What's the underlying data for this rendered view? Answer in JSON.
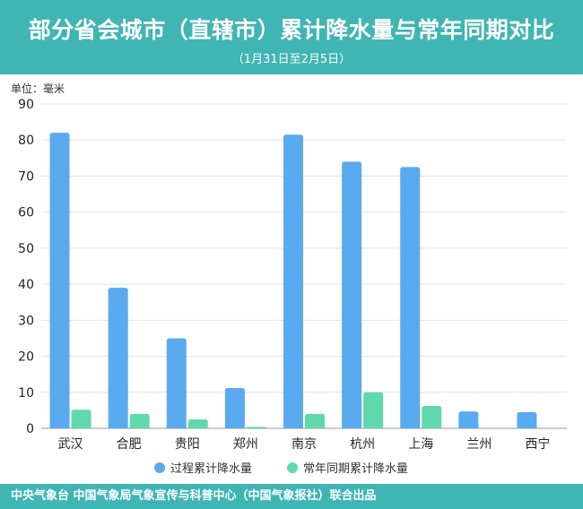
{
  "header": {
    "title": "部分省会城市（直辖市）累计降水量与常年同期对比",
    "subtitle": "（1月31日至2月5日）"
  },
  "footer": {
    "text": "中央气象台 中国气象局气象宣传与科普中心（中国气象报社）联合出品"
  },
  "colors": {
    "header_bg": "#3fb5b4",
    "series_actual": "#5aaaf0",
    "series_normal": "#5fd9ab"
  },
  "chart_data": {
    "type": "bar",
    "title": "部分省会城市（直辖市）累计降水量与常年同期对比",
    "subtitle": "（1月31日至2月5日）",
    "ylabel": "单位：毫米",
    "ylim": [
      0,
      90
    ],
    "yticks": [
      0,
      10,
      20,
      30,
      40,
      50,
      60,
      70,
      80,
      90
    ],
    "grid": true,
    "legend": "bottom-center",
    "categories": [
      "武汉",
      "合肥",
      "贵阳",
      "郑州",
      "南京",
      "杭州",
      "上海",
      "兰州",
      "西宁"
    ],
    "series": [
      {
        "name": "过程累计降水量",
        "color": "#5aaaf0",
        "values": [
          82,
          39,
          25,
          11.2,
          81.5,
          74,
          72.5,
          4.7,
          4.5
        ]
      },
      {
        "name": "常年同期累计降水量",
        "color": "#5fd9ab",
        "values": [
          5.2,
          4,
          2.5,
          0.4,
          4,
          10,
          6.2,
          0,
          0
        ]
      }
    ]
  }
}
